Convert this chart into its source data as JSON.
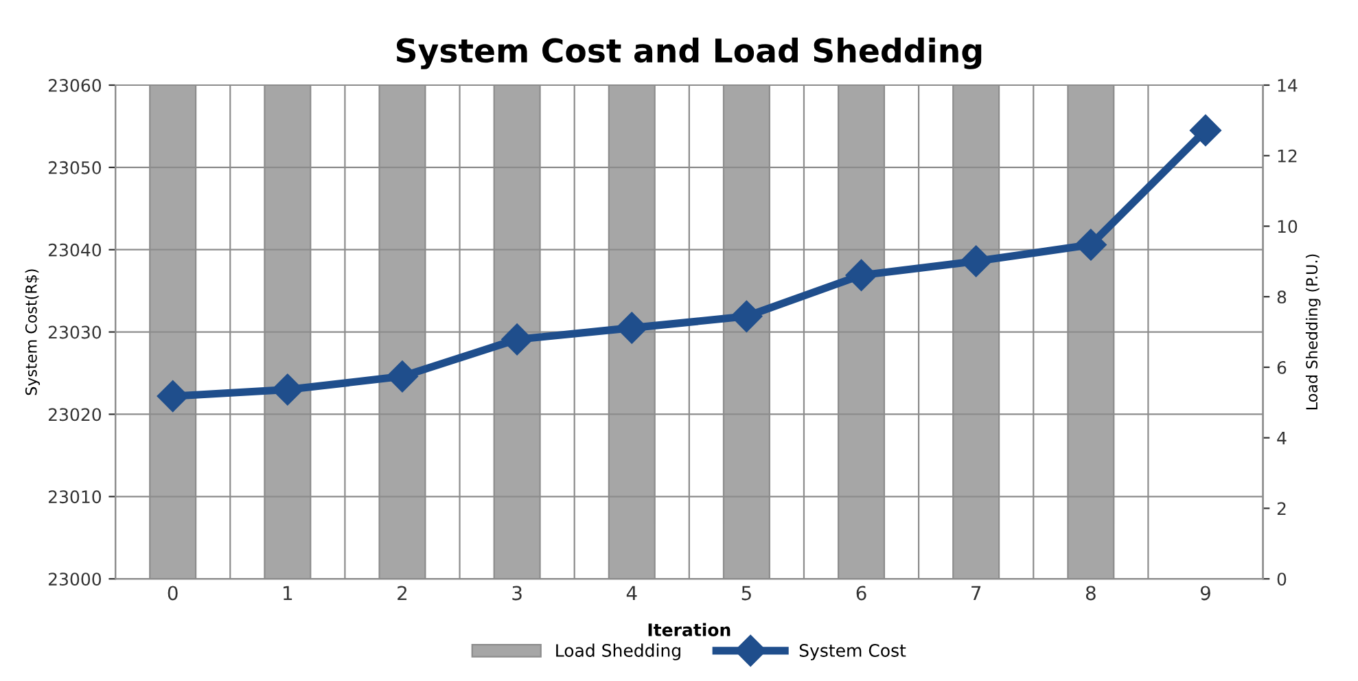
{
  "chart_data": {
    "type": "line",
    "title": "System Cost and Load Shedding",
    "xlabel": "Iteration",
    "ylabel": "System Cost(R$)",
    "y2label": "Load Shedding (P.U.)",
    "categories": [
      "0",
      "1",
      "2",
      "3",
      "4",
      "5",
      "6",
      "7",
      "8",
      "9"
    ],
    "series": [
      {
        "name": "Load Shedding",
        "type": "bar",
        "axis": "y2",
        "color": "#a6a6a6",
        "values": [
          14,
          14,
          14,
          14,
          14,
          14,
          14,
          14,
          14,
          null
        ]
      },
      {
        "name": "System Cost",
        "color": "#1f4e8c",
        "marker": "diamond",
        "values": [
          23022.2,
          23023,
          23024.6,
          23029.1,
          23030.5,
          23031.9,
          23036.9,
          23038.6,
          23040.6,
          23054.5
        ]
      }
    ],
    "ylim": [
      23000,
      23060
    ],
    "yticks": [
      23000,
      23010,
      23020,
      23030,
      23040,
      23050,
      23060
    ],
    "y2lim": [
      0,
      14
    ],
    "y2ticks": [
      0,
      2,
      4,
      6,
      8,
      10,
      12,
      14
    ],
    "grid": true,
    "legend": "bottom"
  }
}
